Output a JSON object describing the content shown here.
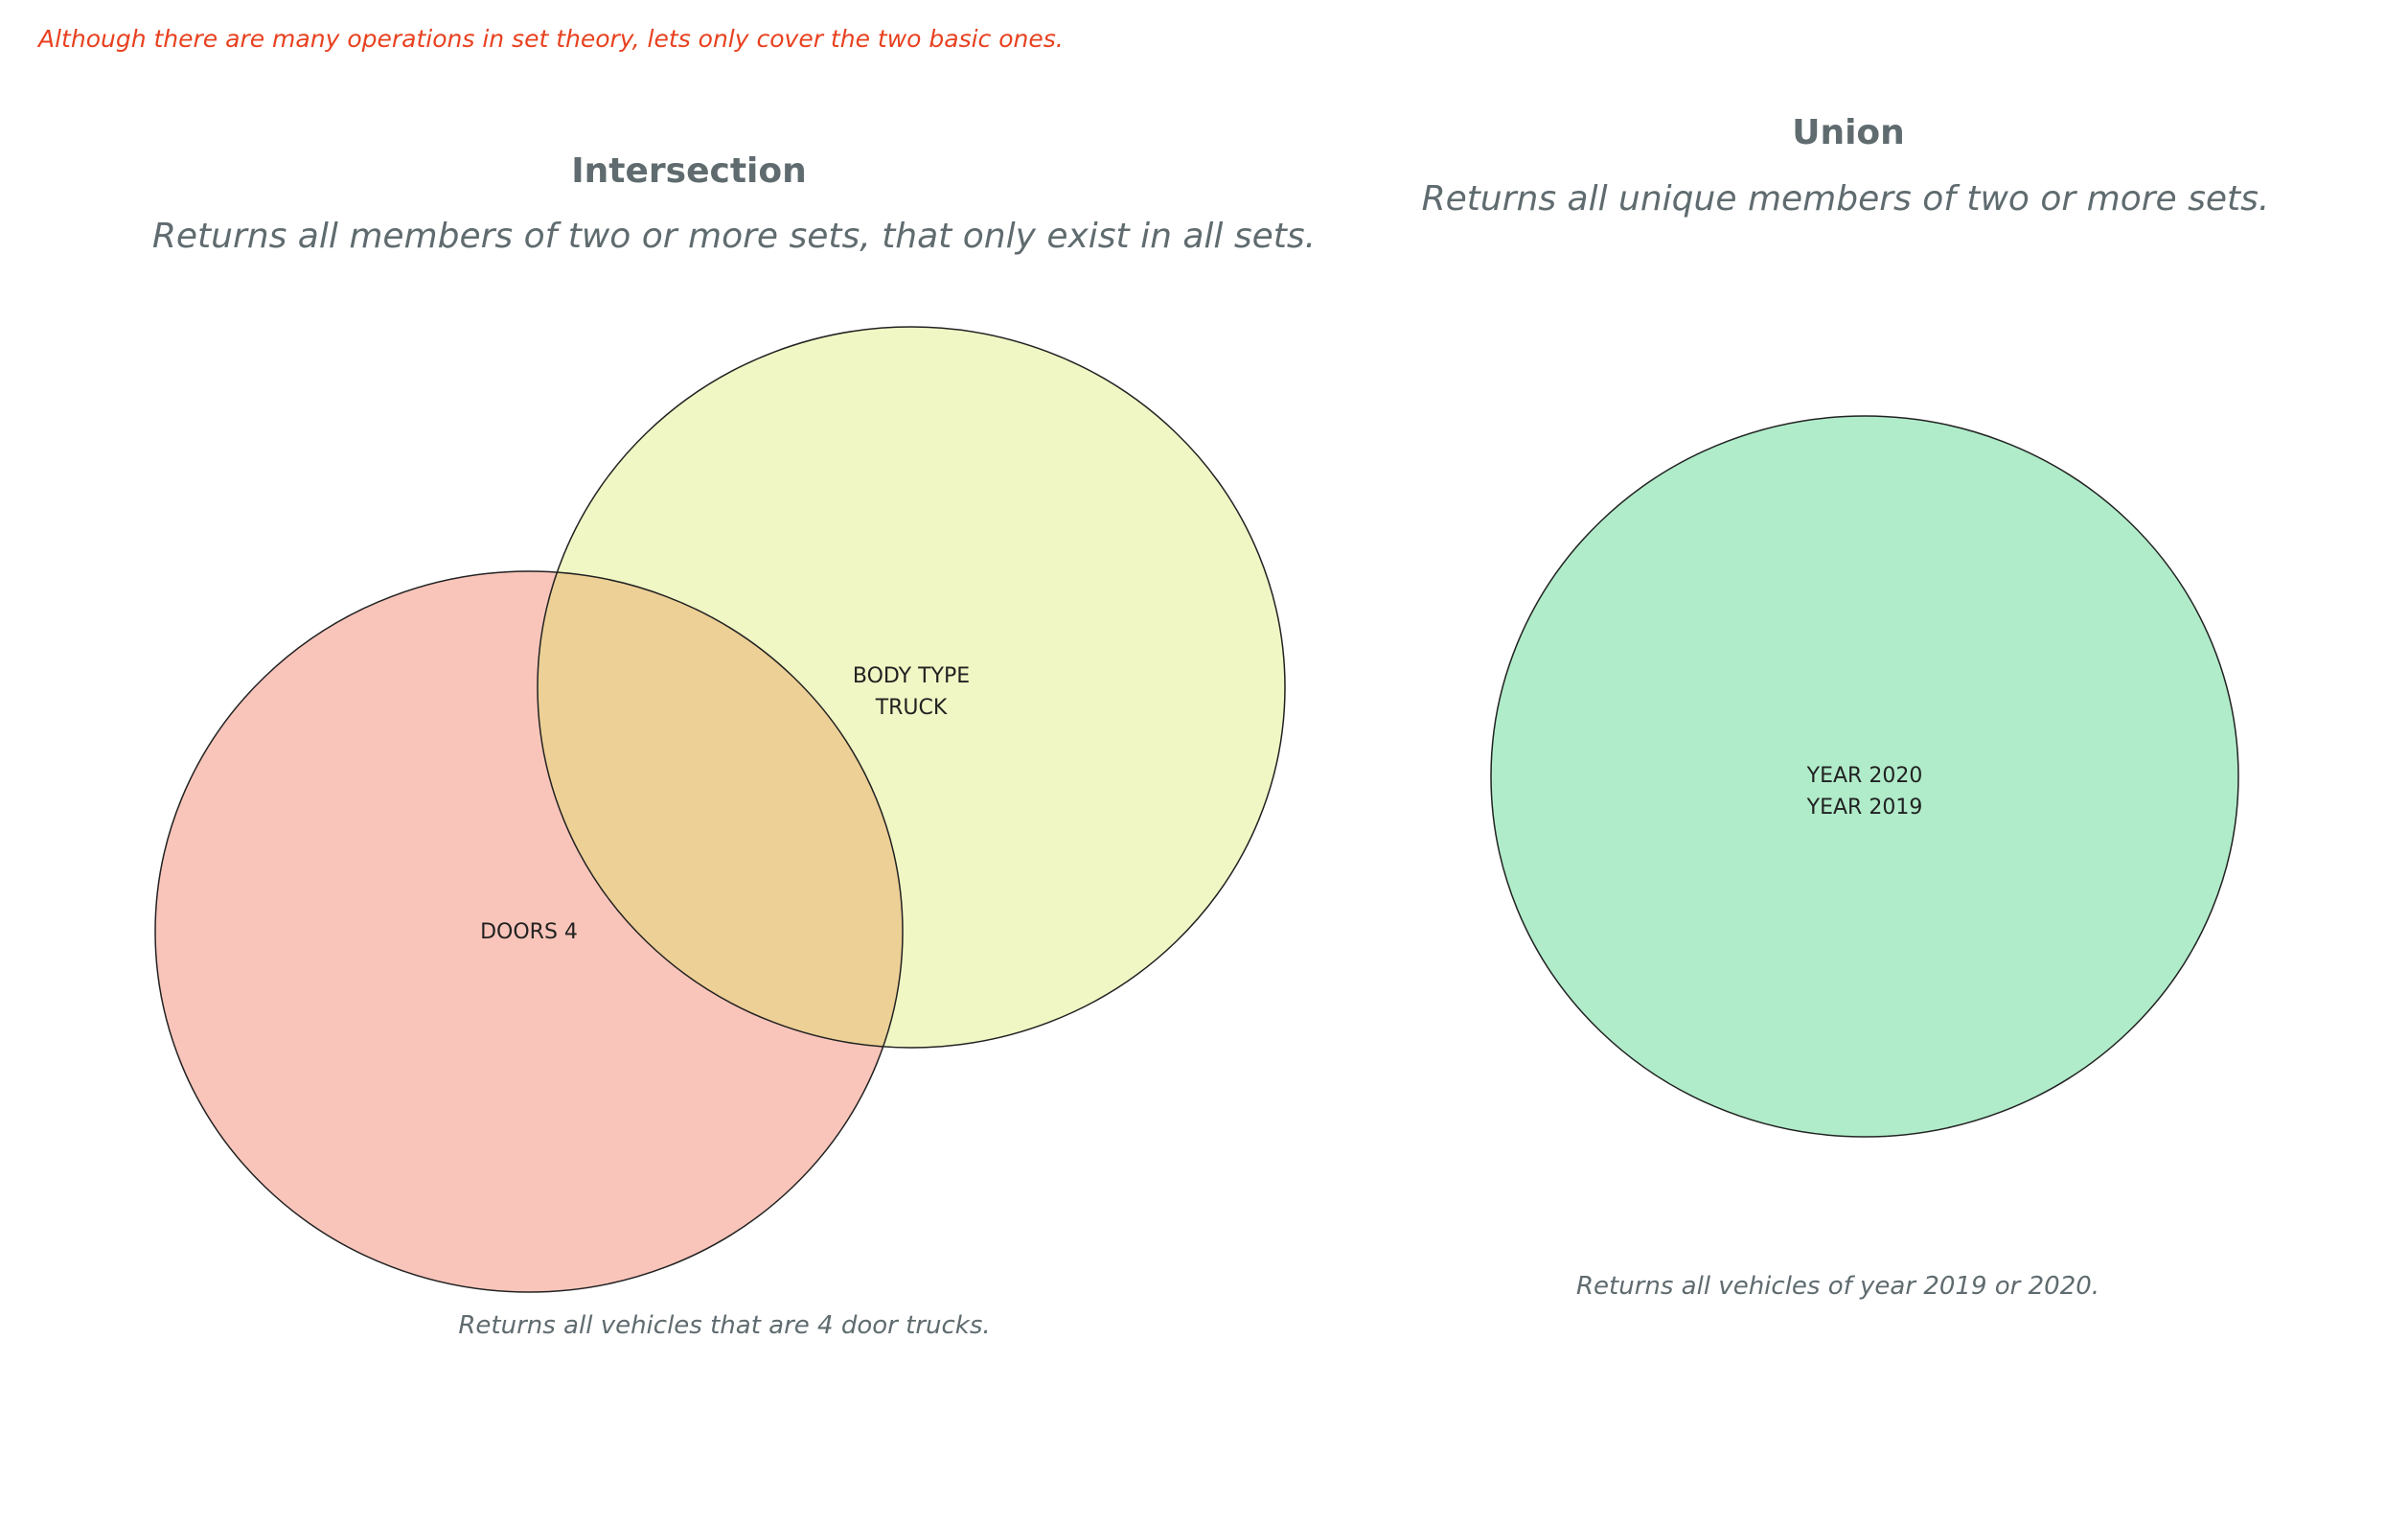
{
  "note": "Although there are many operations in set theory, lets only cover the two basic ones.",
  "intersection": {
    "title": "Intersection",
    "subtitle": "Returns all members of two or more sets, that only exist in all sets.",
    "caption": "Returns all vehicles that are 4 door trucks.",
    "sets": [
      {
        "label": "DOORS 4",
        "color": "#f9c5ba"
      },
      {
        "label_line1": "BODY TYPE",
        "label_line2": "TRUCK",
        "color": "#f0f7c4"
      }
    ],
    "overlap_color": "#edd096"
  },
  "union": {
    "title": "Union",
    "subtitle": "Returns all unique members of two or more sets.",
    "caption": "Returns all vehicles of year 2019 or 2020.",
    "set": {
      "label_line1": "YEAR 2020",
      "label_line2": "YEAR 2019",
      "color": "#b0ecca",
      "line1_color": "#1f5a4a"
    }
  },
  "outline_color": "#222222"
}
